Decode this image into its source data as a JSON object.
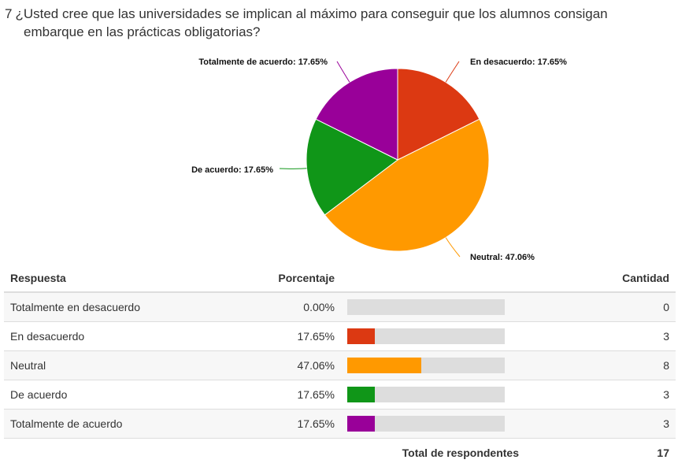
{
  "question": {
    "number": "7",
    "line1": "¿Usted cree que las universidades se implican al máximo para conseguir que los alumnos consigan",
    "line2": "embarque en las prácticas obligatorias?"
  },
  "table": {
    "headers": {
      "response": "Respuesta",
      "percent": "Porcentaje",
      "count": "Cantidad"
    },
    "total_label": "Total de respondentes",
    "total_value": "17"
  },
  "chart_data": {
    "type": "pie",
    "categories": [
      "Totalmente en desacuerdo",
      "En desacuerdo",
      "Neutral",
      "De acuerdo",
      "Totalmente de acuerdo"
    ],
    "values": [
      0,
      17.65,
      47.06,
      17.65,
      17.65
    ],
    "counts": [
      0,
      3,
      8,
      3,
      3
    ],
    "percent_labels": [
      "0.00%",
      "17.65%",
      "47.06%",
      "17.65%",
      "17.65%"
    ],
    "colors": [
      "#3366cc",
      "#dc3912",
      "#ff9900",
      "#109618",
      "#990099"
    ],
    "slice_labels": [
      "",
      "En desacuerdo: 17.65%",
      "Neutral: 47.06%",
      "De acuerdo: 17.65%",
      "Totalmente de acuerdo: 17.65%"
    ]
  }
}
